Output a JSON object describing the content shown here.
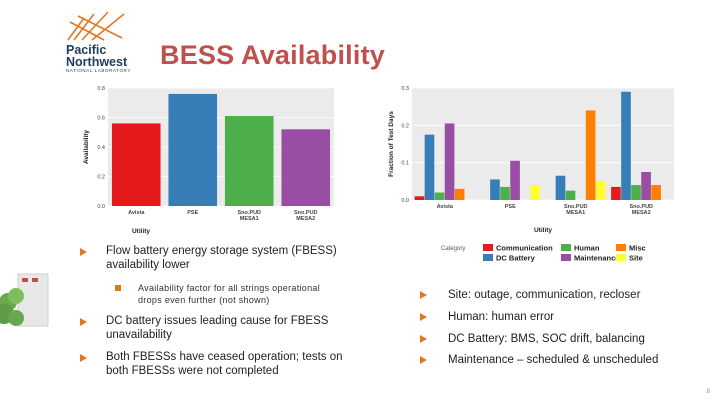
{
  "slide": {
    "title": "BESS Availability",
    "page_number": "8"
  },
  "logo": {
    "line1": "Pacific",
    "line2": "Northwest",
    "line3": "NATIONAL LABORATORY",
    "icon": "pnnl-logo-icon"
  },
  "colors": {
    "accent": "#e0791e",
    "title": "#c0504d",
    "red": "#e41a1c",
    "blue": "#377eb8",
    "green": "#4daf4a",
    "purple": "#984ea3",
    "orange": "#ff7f00",
    "yellow": "#ffff33"
  },
  "chart_data": [
    {
      "type": "bar",
      "xlabel": "Utility",
      "ylabel": "Availability",
      "ylim": [
        0,
        0.8
      ],
      "yticks": [
        "0.0",
        "0.2",
        "0.4",
        "0.6",
        "0.8"
      ],
      "categories": [
        "Avista",
        "PSE",
        "Sno.PUD\nMESA1",
        "Sno.PUD\nMESA2"
      ],
      "values": [
        0.56,
        0.76,
        0.61,
        0.52
      ],
      "bar_colors": [
        "#e41a1c",
        "#377eb8",
        "#4daf4a",
        "#984ea3"
      ],
      "grid": true
    },
    {
      "type": "bar",
      "xlabel": "Utility",
      "ylabel": "Fraction of Test Days",
      "ylim": [
        0,
        0.3
      ],
      "yticks": [
        "0.0",
        "0.1",
        "0.2",
        "0.3"
      ],
      "categories": [
        "Avista",
        "PSE",
        "Sno.PUD\nMESA1",
        "Sno.PUD\nMESA2"
      ],
      "legend_title": "Category",
      "legend_position": "bottom",
      "series": [
        {
          "name": "Communication",
          "color": "#e41a1c",
          "values": [
            0.01,
            0.0,
            0.0,
            0.035
          ]
        },
        {
          "name": "DC Battery",
          "color": "#377eb8",
          "values": [
            0.175,
            0.055,
            0.065,
            0.29
          ]
        },
        {
          "name": "Human",
          "color": "#4daf4a",
          "values": [
            0.02,
            0.035,
            0.025,
            0.04
          ]
        },
        {
          "name": "Maintenance",
          "color": "#984ea3",
          "values": [
            0.205,
            0.105,
            0.0,
            0.075
          ]
        },
        {
          "name": "Misc",
          "color": "#ff7f00",
          "values": [
            0.03,
            0.0,
            0.24,
            0.04
          ]
        },
        {
          "name": "Site",
          "color": "#ffff33",
          "values": [
            0.0,
            0.04,
            0.05,
            0.0
          ]
        }
      ],
      "grid": true
    }
  ],
  "bullets_left": [
    {
      "text": "Flow battery energy storage system (FBESS) availability lower",
      "level": 1
    },
    {
      "text": "Availability factor for all strings operational drops even further (not shown)",
      "level": 2
    },
    {
      "text": "DC battery issues leading cause for FBESS unavailability",
      "level": 1
    },
    {
      "text": "Both FBESSs have ceased operation; tests on both FBESSs were not completed",
      "level": 1
    }
  ],
  "bullets_right": [
    {
      "text": "Site: outage, communication, recloser"
    },
    {
      "text": "Human: human error"
    },
    {
      "text": "DC Battery: BMS, SOC drift, balancing"
    },
    {
      "text": "Maintenance – scheduled & unscheduled"
    }
  ]
}
